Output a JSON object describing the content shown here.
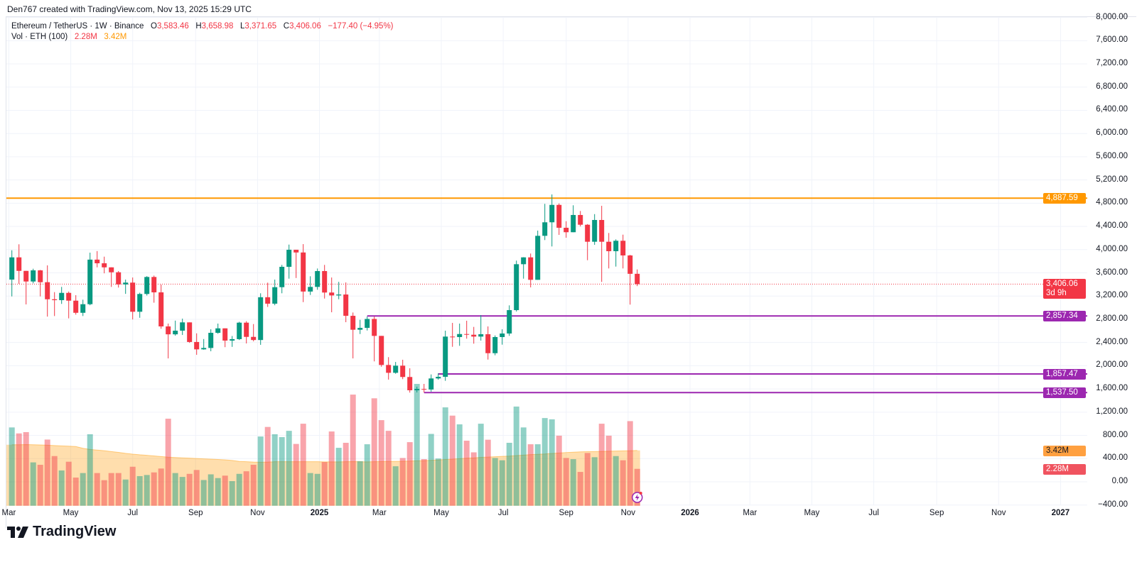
{
  "credit": "Den767 created with TradingView.com, Nov 13, 2025 15:29 UTC",
  "legend": {
    "symbol": "Ethereum / TetherUS · 1W · Binance",
    "o_label": "O",
    "o": "3,583.46",
    "h_label": "H",
    "h": "3,658.98",
    "l_label": "L",
    "l": "3,371.65",
    "c_label": "C",
    "c": "3,406.06",
    "change": "−177.40 (−4.95%)",
    "vol_label": "Vol · ETH (100)",
    "vol": "2.28M",
    "vol_ma": "3.42M"
  },
  "colors": {
    "up": "#089981",
    "down": "#f23645",
    "resistance": "#ff9800",
    "support": "#9c27b0",
    "vol_ma": "#ff9800"
  },
  "price_axis": [
    "8,000.00",
    "7,600.00",
    "7,200.00",
    "6,800.00",
    "6,400.00",
    "6,000.00",
    "5,600.00",
    "5,200.00",
    "4,800.00",
    "4,400.00",
    "4,000.00",
    "3,600.00",
    "3,200.00",
    "2,800.00",
    "2,400.00",
    "2,000.00",
    "1,600.00",
    "1,200.00",
    "800.00",
    "400.00",
    "0.00",
    "−400.00"
  ],
  "price_axis_values": [
    8000,
    7600,
    7200,
    6800,
    6400,
    6000,
    5600,
    5200,
    4800,
    4400,
    4000,
    3600,
    3200,
    2800,
    2400,
    2000,
    1600,
    1200,
    800,
    400,
    0,
    -400
  ],
  "time_axis": [
    {
      "label": "Mar",
      "date": "2024-03-01",
      "year": false
    },
    {
      "label": "May",
      "date": "2024-05-01",
      "year": false
    },
    {
      "label": "Jul",
      "date": "2024-07-01",
      "year": false
    },
    {
      "label": "Sep",
      "date": "2024-09-01",
      "year": false
    },
    {
      "label": "Nov",
      "date": "2024-11-01",
      "year": false
    },
    {
      "label": "2025",
      "date": "2025-01-01",
      "year": true
    },
    {
      "label": "Mar",
      "date": "2025-03-01",
      "year": false
    },
    {
      "label": "May",
      "date": "2025-05-01",
      "year": false
    },
    {
      "label": "Jul",
      "date": "2025-07-01",
      "year": false
    },
    {
      "label": "Sep",
      "date": "2025-09-01",
      "year": false
    },
    {
      "label": "Nov",
      "date": "2025-11-01",
      "year": false
    },
    {
      "label": "2026",
      "date": "2026-01-01",
      "year": true
    },
    {
      "label": "Mar",
      "date": "2026-03-01",
      "year": false
    },
    {
      "label": "May",
      "date": "2026-05-01",
      "year": false
    },
    {
      "label": "Jul",
      "date": "2026-07-01",
      "year": false
    },
    {
      "label": "Sep",
      "date": "2026-09-01",
      "year": false
    },
    {
      "label": "Nov",
      "date": "2026-11-01",
      "year": false
    },
    {
      "label": "2027",
      "date": "2027-01-01",
      "year": true
    }
  ],
  "lines": [
    {
      "label": "4,887.59",
      "price": 4887.59,
      "color": "#ff9800",
      "from_date": "2024-02-26"
    },
    {
      "label": "2,857.34",
      "price": 2857.34,
      "color": "#9c27b0",
      "from_date": "2025-02-17"
    },
    {
      "label": "1,857.47",
      "price": 1857.47,
      "color": "#9c27b0",
      "from_date": "2025-04-28"
    },
    {
      "label": "1,537.50",
      "price": 1537.5,
      "color": "#9c27b0",
      "from_date": "2025-04-14"
    }
  ],
  "last_price": {
    "label": "3,406.06",
    "value": 3406.06,
    "countdown": "3d 9h"
  },
  "vol_tags": {
    "ma": "3.42M",
    "vol": "2.28M"
  },
  "logo": "TradingView",
  "chart_data": {
    "type": "candlestick",
    "interval": "1W",
    "first_week": "2024-03-04",
    "ohlc": [
      [
        3484,
        3989,
        3194,
        3867
      ],
      [
        3867,
        4092,
        3410,
        3634
      ],
      [
        3634,
        3634,
        3056,
        3451
      ],
      [
        3451,
        3671,
        3419,
        3643
      ],
      [
        3643,
        3651,
        3194,
        3439
      ],
      [
        3439,
        3729,
        2846,
        3145
      ],
      [
        3145,
        3268,
        2856,
        3130
      ],
      [
        3130,
        3358,
        3065,
        3255
      ],
      [
        3255,
        3278,
        2816,
        3121
      ],
      [
        3121,
        3215,
        2880,
        2912
      ],
      [
        2912,
        3138,
        2856,
        3060
      ],
      [
        3060,
        3948,
        3042,
        3828
      ],
      [
        3828,
        3975,
        3695,
        3765
      ],
      [
        3765,
        3879,
        3592,
        3695
      ],
      [
        3695,
        3695,
        3358,
        3610
      ],
      [
        3610,
        3631,
        3347,
        3401
      ],
      [
        3401,
        3484,
        3238,
        3432
      ],
      [
        3432,
        3520,
        2797,
        2930
      ],
      [
        2930,
        3258,
        2826,
        3236
      ],
      [
        3236,
        3543,
        3209,
        3529
      ],
      [
        3529,
        3553,
        3086,
        3264
      ],
      [
        3264,
        3398,
        2637,
        2677
      ],
      [
        2677,
        2726,
        2126,
        2541
      ],
      [
        2541,
        2777,
        2518,
        2604
      ],
      [
        2604,
        2811,
        2530,
        2747
      ],
      [
        2747,
        2747,
        2394,
        2409
      ],
      [
        2409,
        2558,
        2188,
        2282
      ],
      [
        2282,
        2460,
        2276,
        2306
      ],
      [
        2306,
        2628,
        2249,
        2567
      ],
      [
        2567,
        2726,
        2551,
        2644
      ],
      [
        2644,
        2644,
        2320,
        2433
      ],
      [
        2433,
        2512,
        2325,
        2458
      ],
      [
        2458,
        2757,
        2443,
        2742
      ],
      [
        2742,
        2767,
        2384,
        2497
      ],
      [
        2497,
        2718,
        2420,
        2443
      ],
      [
        2443,
        3248,
        2360,
        3180
      ],
      [
        3180,
        3431,
        3013,
        3069
      ],
      [
        3069,
        3484,
        3042,
        3353
      ],
      [
        3353,
        3737,
        3248,
        3704
      ],
      [
        3704,
        4087,
        3500,
        3998
      ],
      [
        3998,
        3998,
        3511,
        3951
      ],
      [
        3951,
        4095,
        3096,
        3278
      ],
      [
        3278,
        3541,
        3219,
        3358
      ],
      [
        3358,
        3675,
        3309,
        3631
      ],
      [
        3631,
        3737,
        3157,
        3261
      ],
      [
        3261,
        3520,
        2921,
        3211
      ],
      [
        3211,
        3445,
        3145,
        3227
      ],
      [
        3227,
        3435,
        2750,
        2860
      ],
      [
        2860,
        2917,
        2126,
        2620
      ],
      [
        2620,
        2791,
        2546,
        2652
      ],
      [
        2652,
        2848,
        2607,
        2806
      ],
      [
        2806,
        2848,
        2075,
        2514
      ],
      [
        2514,
        2514,
        1983,
        2013
      ],
      [
        2013,
        2148,
        1761,
        1878
      ],
      [
        1878,
        2065,
        1862,
        2001
      ],
      [
        2001,
        2103,
        1769,
        1806
      ],
      [
        1806,
        1956,
        1537,
        1577
      ],
      [
        1577,
        1640,
        1540,
        1600
      ],
      [
        1600,
        1687,
        1540,
        1590
      ],
      [
        1590,
        1850,
        1553,
        1781
      ],
      [
        1781,
        1870,
        1760,
        1809
      ],
      [
        1809,
        2604,
        1740,
        2502
      ],
      [
        2502,
        2738,
        2326,
        2494
      ],
      [
        2494,
        2726,
        2343,
        2546
      ],
      [
        2546,
        2775,
        2466,
        2534
      ],
      [
        2534,
        2669,
        2380,
        2502
      ],
      [
        2502,
        2873,
        2433,
        2543
      ],
      [
        2543,
        2677,
        2106,
        2216
      ],
      [
        2216,
        2522,
        2180,
        2494
      ],
      [
        2494,
        2628,
        2363,
        2555
      ],
      [
        2555,
        3040,
        2515,
        2958
      ],
      [
        2958,
        3811,
        2934,
        3749
      ],
      [
        3749,
        3870,
        3500,
        3867
      ],
      [
        3867,
        3933,
        3350,
        3480
      ],
      [
        3480,
        4328,
        3480,
        4238
      ],
      [
        4238,
        4789,
        4165,
        4471
      ],
      [
        4471,
        4951,
        4055,
        4771
      ],
      [
        4771,
        4796,
        4254,
        4377
      ],
      [
        4377,
        4490,
        4205,
        4300
      ],
      [
        4300,
        4764,
        4300,
        4597
      ],
      [
        4597,
        4666,
        4400,
        4429
      ],
      [
        4429,
        4440,
        3818,
        4136
      ],
      [
        4136,
        4612,
        4083,
        4511
      ],
      [
        4511,
        4755,
        3444,
        4136
      ],
      [
        4136,
        4287,
        3676,
        3973
      ],
      [
        3973,
        4177,
        3708,
        4153
      ],
      [
        4153,
        4258,
        3676,
        3900
      ],
      [
        3900,
        3910,
        3053,
        3583.46
      ],
      [
        3583.46,
        3658.98,
        3371.65,
        3406.06
      ]
    ],
    "volume_millions": [
      4.84,
      4.47,
      4.55,
      2.68,
      2.53,
      4.09,
      3.07,
      2.18,
      2.72,
      1.74,
      2.02,
      4.42,
      2.02,
      1.58,
      2.02,
      2.02,
      1.62,
      2.41,
      1.83,
      1.9,
      2.06,
      2.3,
      5.38,
      2.02,
      1.78,
      1.97,
      2.21,
      1.59,
      1.94,
      1.71,
      1.86,
      1.52,
      1.97,
      2.13,
      2.53,
      4.28,
      4.87,
      4.42,
      4.24,
      4.63,
      3.82,
      5.07,
      2.02,
      1.97,
      2.7,
      4.59,
      3.58,
      3.89,
      6.87,
      2.75,
      3.8,
      6.64,
      5.29,
      4.63,
      2.44,
      2.95,
      3.93,
      7.53,
      2.88,
      4.44,
      2.92,
      6.08,
      5.57,
      5.03,
      4.02,
      3.3,
      5.07,
      4.08,
      2.95,
      2.81,
      3.89,
      6.13,
      4.84,
      3.8,
      3.8,
      5.42,
      5.34,
      4.33,
      2.95,
      2.88,
      2.09,
      3.26,
      3.0,
      5.07,
      4.33,
      3.07,
      2.81,
      5.23,
      2.28
    ],
    "volume_ma_millions": [
      3.77,
      3.77,
      3.78,
      3.77,
      3.76,
      3.74,
      3.72,
      3.7,
      3.68,
      3.66,
      3.55,
      3.48,
      3.44,
      3.4,
      3.35,
      3.3,
      3.24,
      3.19,
      3.15,
      3.12,
      3.08,
      3.04,
      3.0,
      2.98,
      2.96,
      2.94,
      2.92,
      2.9,
      2.88,
      2.86,
      2.84,
      2.8,
      2.74,
      2.72,
      2.7,
      2.69,
      2.7,
      2.72,
      2.72,
      2.72,
      2.72,
      2.72,
      2.72,
      2.72,
      2.71,
      2.71,
      2.71,
      2.72,
      2.73,
      2.72,
      2.71,
      2.72,
      2.73,
      2.74,
      2.74,
      2.75,
      2.76,
      2.78,
      2.79,
      2.81,
      2.83,
      2.86,
      2.88,
      2.91,
      2.94,
      2.96,
      2.99,
      3.01,
      3.03,
      3.05,
      3.07,
      3.1,
      3.13,
      3.16,
      3.18,
      3.2,
      3.23,
      3.26,
      3.29,
      3.31,
      3.33,
      3.34,
      3.35,
      3.36,
      3.37,
      3.38,
      3.39,
      3.4,
      3.42
    ],
    "price_range": [
      -400,
      8000
    ],
    "grid": true
  }
}
